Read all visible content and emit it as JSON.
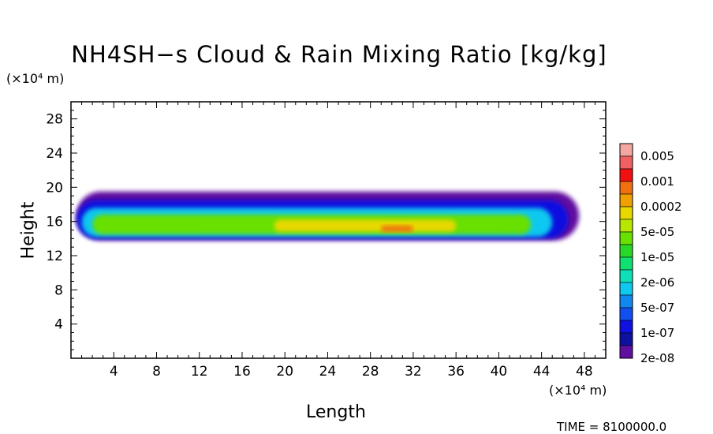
{
  "chart_data": {
    "type": "heatmap",
    "title": "NH4SH−s Cloud & Rain Mixing Ratio [kg/kg]",
    "xlabel": "Length",
    "ylabel": "Height",
    "x_unit": "(×10⁴ m)",
    "y_unit": "(×10⁴ m)",
    "xlim": [
      0,
      50
    ],
    "ylim": [
      0,
      30
    ],
    "x_ticks": [
      4,
      8,
      12,
      16,
      20,
      24,
      28,
      32,
      36,
      40,
      44,
      48
    ],
    "y_ticks": [
      4,
      8,
      12,
      16,
      20,
      24,
      28
    ],
    "colorbar": {
      "labels": [
        "0.005",
        "0.001",
        "0.0002",
        "5e-05",
        "1e-05",
        "2e-06",
        "5e-07",
        "1e-07",
        "2e-08"
      ],
      "colors": [
        "#f4a6a0",
        "#f06060",
        "#f01010",
        "#f07010",
        "#f0a000",
        "#e8d800",
        "#b8e800",
        "#68e000",
        "#28d828",
        "#10e070",
        "#10e0b8",
        "#10c8f0",
        "#1088f0",
        "#1050f0",
        "#1010e0",
        "#1010a0",
        "#6010a0"
      ]
    },
    "cloud_layers": [
      {
        "level": "2e-08",
        "color": "#6010a0",
        "x_range": [
          0.5,
          47.5
        ],
        "y_range": [
          13.8,
          19.5
        ]
      },
      {
        "level": "1e-07",
        "color": "#1010e0",
        "x_range": [
          0.5,
          46.5
        ],
        "y_range": [
          14.0,
          18.5
        ]
      },
      {
        "level": "5e-07",
        "color": "#10c8f0",
        "x_range": [
          1.0,
          45.0
        ],
        "y_range": [
          14.2,
          17.6
        ]
      },
      {
        "level": "5e-05",
        "color": "#68e000",
        "x_range": [
          2.0,
          43.0
        ],
        "y_range": [
          14.5,
          16.8
        ]
      },
      {
        "level": "1e-05",
        "color": "#e8d800",
        "x_range": [
          19.0,
          36.0
        ],
        "y_range": [
          14.8,
          16.2
        ]
      },
      {
        "level": "0.0002",
        "color": "#f07010",
        "x_range": [
          29.0,
          32.0
        ],
        "y_range": [
          14.8,
          15.5
        ]
      }
    ],
    "grid": false,
    "legend_position": "right"
  },
  "labels": {
    "title": "NH4SH−s Cloud & Rain Mixing Ratio [kg/kg]",
    "x_axis": "Length",
    "y_axis": "Height",
    "x_unit": "(×10⁴ m)",
    "y_unit": "(×10⁴ m)",
    "timestamp": "TIME = 8100000.0"
  }
}
